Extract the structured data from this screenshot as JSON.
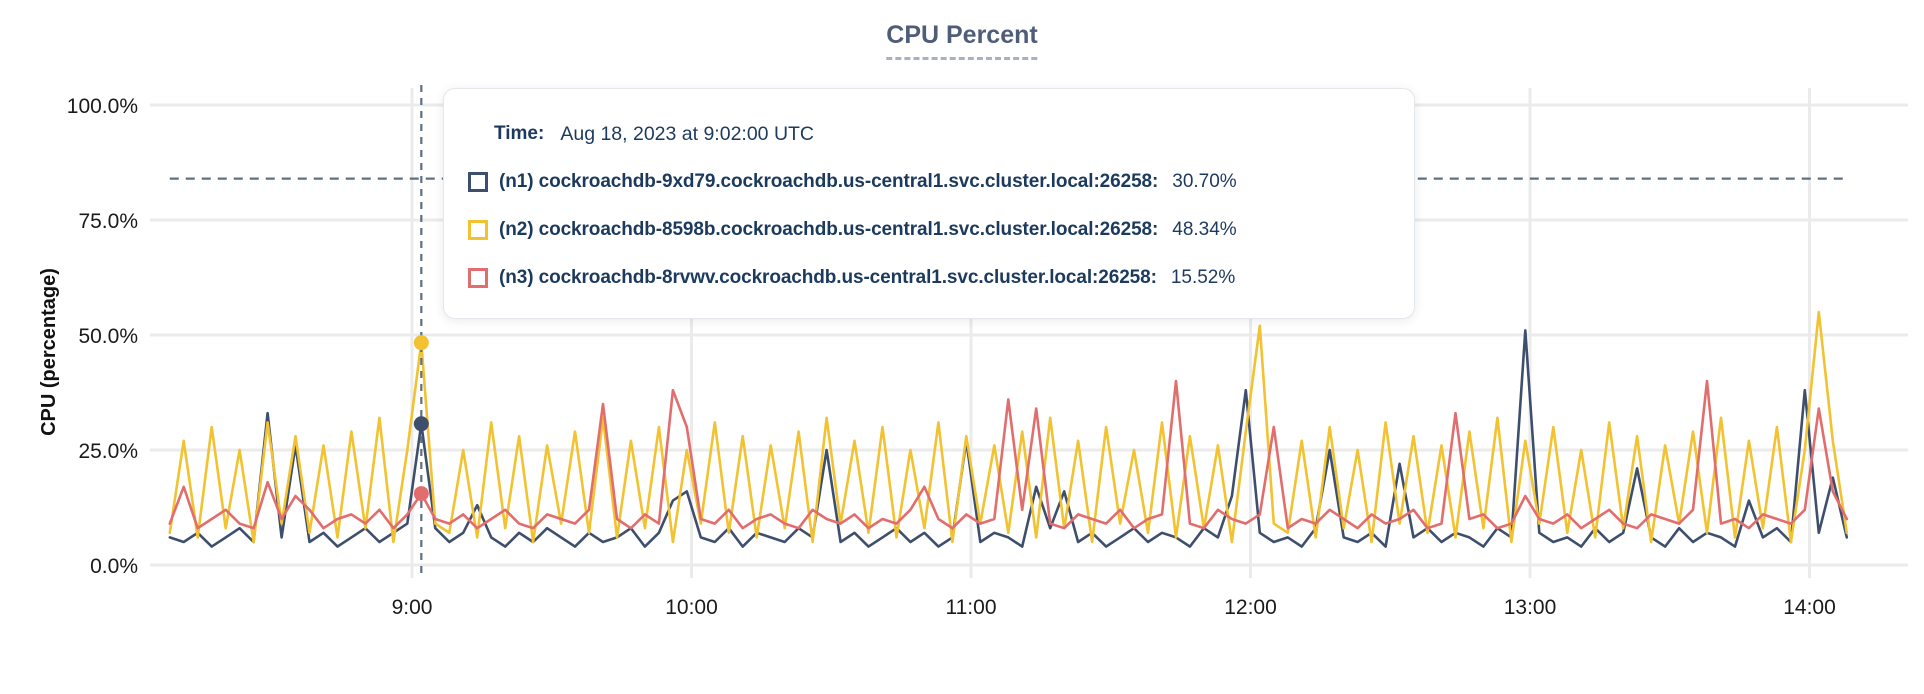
{
  "title": "CPU Percent",
  "tooltip": {
    "time_label": "Time:",
    "time_value": "Aug 18, 2023 at 9:02:00 UTC",
    "series": [
      {
        "label": "(n1) cockroachdb-9xd79.cockroachdb.us-central1.svc.cluster.local:26258:",
        "value": "30.70%",
        "color": "#3e4f6d"
      },
      {
        "label": "(n2) cockroachdb-8598b.cockroachdb.us-central1.svc.cluster.local:26258:",
        "value": "48.34%",
        "color": "#f2c231"
      },
      {
        "label": "(n3) cockroachdb-8rvwv.cockroachdb.us-central1.svc.cluster.local:26258:",
        "value": "15.52%",
        "color": "#e26d6d"
      }
    ]
  },
  "chart_data": {
    "type": "line",
    "title": "CPU Percent",
    "ylabel": "CPU (percentage)",
    "xlabel": "",
    "ylim": [
      0,
      100
    ],
    "grid": true,
    "y_ticks": [
      "0.0%",
      "25.0%",
      "50.0%",
      "75.0%",
      "100.0%"
    ],
    "y_tick_pcts": [
      0,
      25,
      50,
      75,
      100
    ],
    "x_ticks": [
      "9:00",
      "10:00",
      "11:00",
      "12:00",
      "13:00",
      "14:00"
    ],
    "x_tick_minutes": [
      60,
      120,
      180,
      240,
      300,
      360
    ],
    "x_unit": "minutes since 8:00, data ~8:08 to ~14:08 UTC, Aug 18 2023",
    "x_start_min": 8,
    "x_step_min": 3,
    "threshold_line": {
      "value": 84,
      "style": "dashed"
    },
    "crosshair": {
      "x_min": 62,
      "time": "9:02:00 UTC",
      "points": [
        {
          "series": "n1",
          "value": 30.7
        },
        {
          "series": "n2",
          "value": 48.34
        },
        {
          "series": "n3",
          "value": 15.52
        }
      ]
    },
    "series": [
      {
        "name": "(n1) cockroachdb-9xd79.cockroachdb.us-central1.svc.cluster.local:26258",
        "color": "#3e4f6d",
        "values": [
          6,
          5,
          7,
          4,
          6,
          8,
          5,
          33,
          6,
          26,
          5,
          7,
          4,
          6,
          8,
          5,
          7,
          9,
          30.7,
          8,
          5,
          7,
          13,
          6,
          4,
          7,
          5,
          8,
          6,
          4,
          7,
          5,
          6,
          8,
          4,
          7,
          14,
          16,
          6,
          5,
          8,
          4,
          7,
          6,
          5,
          8,
          6,
          25,
          5,
          7,
          4,
          6,
          8,
          5,
          7,
          4,
          6,
          27,
          5,
          7,
          6,
          4,
          17,
          8,
          16,
          5,
          7,
          4,
          6,
          8,
          5,
          7,
          6,
          4,
          8,
          6,
          15,
          38,
          7,
          5,
          6,
          4,
          8,
          25,
          6,
          5,
          7,
          4,
          22,
          6,
          8,
          5,
          7,
          6,
          4,
          8,
          6,
          51,
          7,
          5,
          6,
          4,
          8,
          5,
          7,
          21,
          6,
          4,
          8,
          5,
          7,
          6,
          4,
          14,
          6,
          8,
          5,
          38,
          7,
          19,
          6
        ]
      },
      {
        "name": "(n2) cockroachdb-8598b.cockroachdb.us-central1.svc.cluster.local:26258",
        "color": "#f2c231",
        "values": [
          7,
          27,
          6,
          30,
          8,
          25,
          5,
          31,
          9,
          28,
          7,
          26,
          6,
          29,
          8,
          32,
          5,
          25,
          48.34,
          9,
          7,
          25,
          6,
          31,
          8,
          28,
          5,
          26,
          9,
          29,
          7,
          32,
          6,
          27,
          8,
          30,
          5,
          25,
          9,
          31,
          7,
          28,
          6,
          26,
          8,
          29,
          5,
          32,
          9,
          27,
          7,
          30,
          6,
          25,
          8,
          31,
          5,
          28,
          9,
          26,
          7,
          29,
          6,
          32,
          8,
          27,
          5,
          30,
          9,
          25,
          7,
          31,
          6,
          28,
          8,
          26,
          5,
          29,
          52,
          9,
          7,
          27,
          6,
          30,
          8,
          25,
          5,
          31,
          9,
          28,
          7,
          26,
          6,
          29,
          8,
          32,
          5,
          27,
          9,
          30,
          7,
          25,
          6,
          31,
          8,
          28,
          5,
          26,
          9,
          29,
          7,
          32,
          6,
          27,
          8,
          30,
          5,
          25,
          55,
          27,
          7
        ]
      },
      {
        "name": "(n3) cockroachdb-8rvwv.cockroachdb.us-central1.svc.cluster.local:26258",
        "color": "#e26d6d",
        "values": [
          9,
          17,
          8,
          10,
          12,
          9,
          8,
          18,
          10,
          15,
          12,
          8,
          10,
          11,
          9,
          12,
          8,
          11,
          15.52,
          10,
          9,
          11,
          8,
          10,
          12,
          9,
          8,
          11,
          10,
          9,
          12,
          35,
          10,
          8,
          11,
          9,
          38,
          30,
          10,
          9,
          12,
          8,
          10,
          11,
          9,
          8,
          12,
          10,
          9,
          11,
          8,
          10,
          9,
          12,
          17,
          10,
          8,
          11,
          9,
          10,
          36,
          12,
          34,
          9,
          8,
          11,
          10,
          9,
          12,
          8,
          10,
          11,
          40,
          9,
          8,
          12,
          10,
          9,
          11,
          30,
          8,
          10,
          9,
          12,
          10,
          8,
          11,
          9,
          10,
          12,
          8,
          9,
          33,
          10,
          11,
          8,
          9,
          15,
          10,
          9,
          11,
          8,
          10,
          12,
          9,
          8,
          11,
          10,
          9,
          12,
          40,
          9,
          10,
          8,
          11,
          10,
          9,
          12,
          34,
          16,
          10
        ]
      }
    ]
  }
}
